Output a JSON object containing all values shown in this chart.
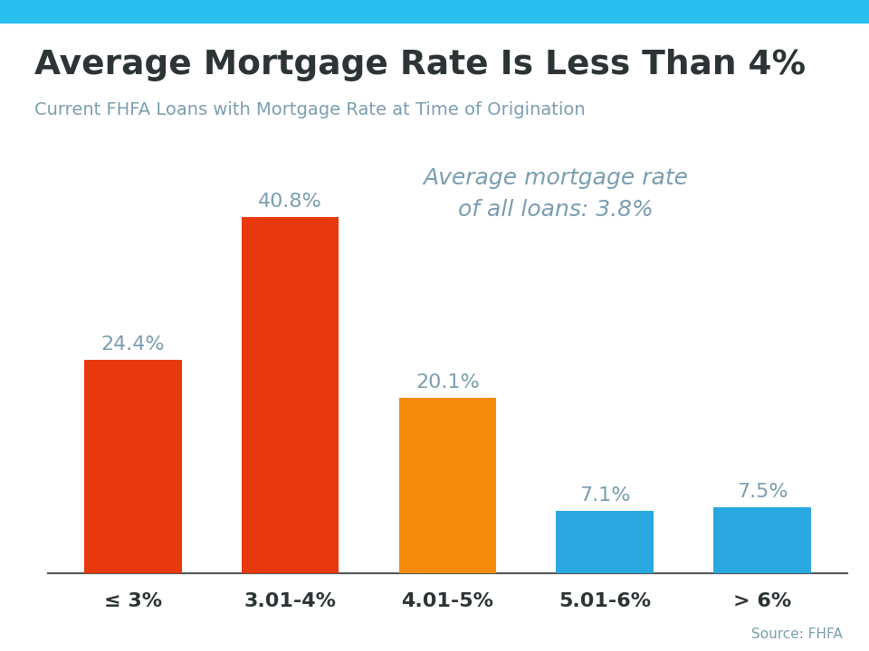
{
  "title": "Average Mortgage Rate Is Less Than 4%",
  "subtitle": "Current FHFA Loans with Mortgage Rate at Time of Origination",
  "categories": [
    "≤ 3%",
    "3.01-4%",
    "4.01-5%",
    "5.01-6%",
    "> 6%"
  ],
  "values": [
    24.4,
    40.8,
    20.1,
    7.1,
    7.5
  ],
  "bar_colors": [
    "#E8380D",
    "#E8380D",
    "#F58B0A",
    "#29A8E0",
    "#29A8E0"
  ],
  "label_color": "#7A9EB0",
  "title_color": "#2D3436",
  "subtitle_color": "#7A9EB0",
  "annotation_color": "#7A9EB0",
  "annotation_text": "Average mortgage rate\nof all loans: 3.8%",
  "source_text": "Source: FHFA",
  "top_stripe_color": "#29BFED",
  "background_color": "#FFFFFF",
  "ylim": [
    0,
    50
  ],
  "bar_width": 0.62
}
